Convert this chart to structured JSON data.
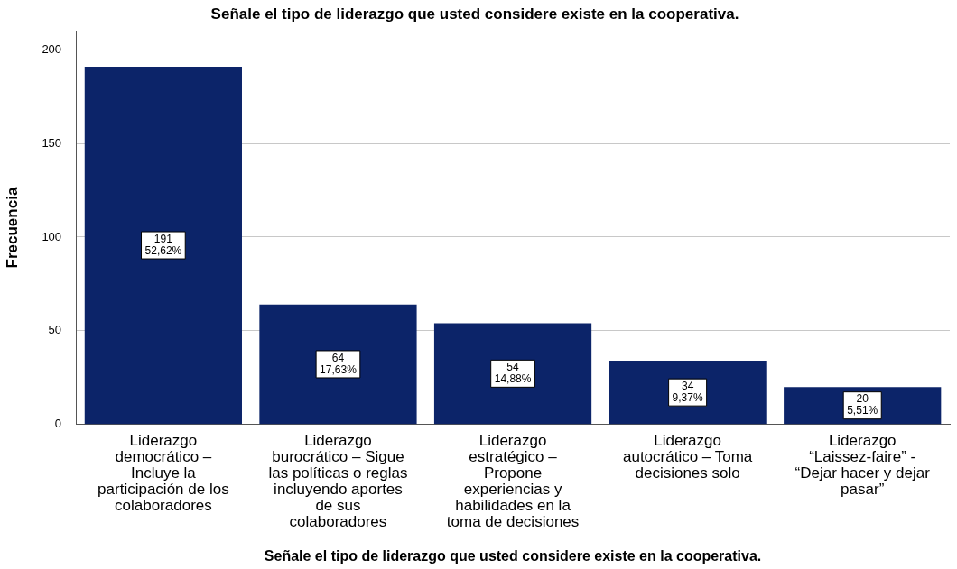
{
  "chart_data": {
    "type": "bar",
    "title": "Señale el tipo de liderazgo que usted considere existe en la cooperativa.",
    "xlabel": "Señale el tipo de liderazgo que usted considere existe en la cooperativa.",
    "ylabel": "Frecuencia",
    "categories": [
      "Liderazgo democrático – Incluye la participación de los colaboradores",
      "Liderazgo burocrático – Sigue las políticas o reglas incluyendo aportes de sus colaboradores",
      "Liderazgo estratégico – Propone experiencias y habilidades en la toma de decisiones",
      "Liderazgo autocrático – Toma decisiones solo",
      "Liderazgo “Laissez-faire” - “Dejar hacer y dejar pasar”"
    ],
    "values": [
      191,
      64,
      54,
      34,
      20
    ],
    "value_labels": [
      "191\n52,62%",
      "64\n17,63%",
      "54\n14,88%",
      "34\n9,37%",
      "20\n5,51%"
    ],
    "color": "#0c2469",
    "ylim": [
      0,
      210
    ],
    "yticks": [
      0,
      50,
      100,
      150,
      200
    ],
    "grid": "y",
    "legend": false
  }
}
